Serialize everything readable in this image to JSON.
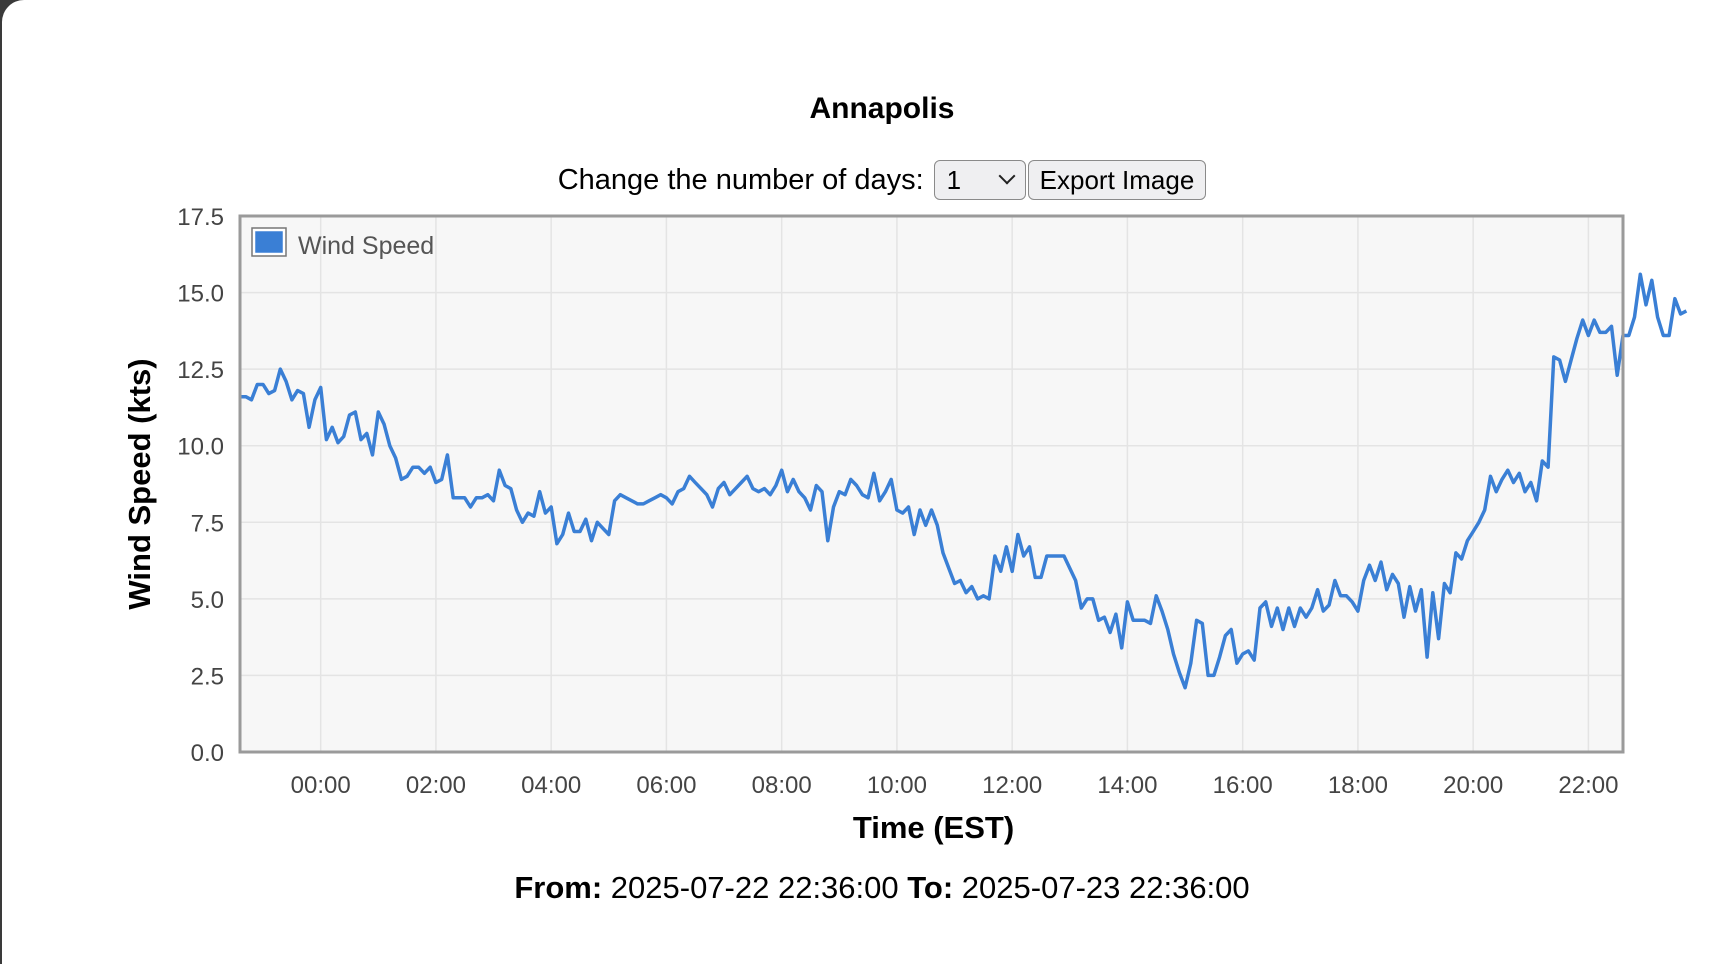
{
  "page": {
    "title": "Annapolis",
    "days_label": "Change the number of days:",
    "days_value": "1",
    "export_label": "Export Image",
    "from_label": "From:",
    "from_value": "2025-07-22 22:36:00",
    "to_label": "To:",
    "to_value": "2025-07-23 22:36:00"
  },
  "chart_data": {
    "type": "line",
    "title": "Annapolis",
    "xlabel": "Time (EST)",
    "ylabel": "Wind Speed (kts)",
    "ylim": [
      0,
      17.5
    ],
    "yticks": [
      "0.0",
      "2.5",
      "5.0",
      "7.5",
      "10.0",
      "12.5",
      "15.0",
      "17.5"
    ],
    "xlim": [
      "2025-07-22 22:36:00",
      "2025-07-23 22:36:00"
    ],
    "xticks": [
      "00:00",
      "02:00",
      "04:00",
      "06:00",
      "08:00",
      "10:00",
      "12:00",
      "14:00",
      "16:00",
      "18:00",
      "20:00",
      "22:00"
    ],
    "grid": true,
    "legend": {
      "position": "top-left",
      "entries": [
        "Wind Speed"
      ]
    },
    "series": [
      {
        "name": "Wind Speed",
        "color": "#3a7fd5",
        "x_interval_minutes": 6,
        "x_start": "2025-07-22 22:36:00",
        "values": [
          11.6,
          11.6,
          11.5,
          12.0,
          12.0,
          11.7,
          11.8,
          12.5,
          12.1,
          11.5,
          11.8,
          11.7,
          10.6,
          11.5,
          11.9,
          10.2,
          10.6,
          10.1,
          10.3,
          11.0,
          11.1,
          10.2,
          10.4,
          9.7,
          11.1,
          10.7,
          10.0,
          9.6,
          8.9,
          9.0,
          9.3,
          9.3,
          9.1,
          9.3,
          8.8,
          8.9,
          9.7,
          8.3,
          8.3,
          8.3,
          8.0,
          8.3,
          8.3,
          8.4,
          8.2,
          9.2,
          8.7,
          8.6,
          7.9,
          7.5,
          7.8,
          7.7,
          8.5,
          7.8,
          8.0,
          6.8,
          7.1,
          7.8,
          7.2,
          7.2,
          7.6,
          6.9,
          7.5,
          7.3,
          7.1,
          8.2,
          8.4,
          8.3,
          8.2,
          8.1,
          8.1,
          8.2,
          8.3,
          8.4,
          8.3,
          8.1,
          8.5,
          8.6,
          9.0,
          8.8,
          8.6,
          8.4,
          8.0,
          8.6,
          8.8,
          8.4,
          8.6,
          8.8,
          9.0,
          8.6,
          8.5,
          8.6,
          8.4,
          8.7,
          9.2,
          8.5,
          8.9,
          8.5,
          8.3,
          7.9,
          8.7,
          8.5,
          6.9,
          8.0,
          8.5,
          8.4,
          8.9,
          8.7,
          8.4,
          8.3,
          9.1,
          8.2,
          8.5,
          8.9,
          7.9,
          7.8,
          8.0,
          7.1,
          7.9,
          7.4,
          7.9,
          7.4,
          6.5,
          6.0,
          5.5,
          5.6,
          5.2,
          5.4,
          5.0,
          5.1,
          5.0,
          6.4,
          5.9,
          6.7,
          5.9,
          7.1,
          6.4,
          6.7,
          5.7,
          5.7,
          6.4,
          6.4,
          6.4,
          6.4,
          6.0,
          5.6,
          4.7,
          5.0,
          5.0,
          4.3,
          4.4,
          3.9,
          4.5,
          3.4,
          4.9,
          4.3,
          4.3,
          4.3,
          4.2,
          5.1,
          4.6,
          4.0,
          3.2,
          2.6,
          2.1,
          2.9,
          4.3,
          4.2,
          2.5,
          2.5,
          3.1,
          3.8,
          4.0,
          2.9,
          3.2,
          3.3,
          3.0,
          4.7,
          4.9,
          4.1,
          4.7,
          4.0,
          4.7,
          4.1,
          4.7,
          4.4,
          4.7,
          5.3,
          4.6,
          4.8,
          5.6,
          5.1,
          5.1,
          4.9,
          4.6,
          5.6,
          6.1,
          5.6,
          6.2,
          5.3,
          5.8,
          5.5,
          4.4,
          5.4,
          4.6,
          5.3,
          3.1,
          5.2,
          3.7,
          5.5,
          5.2,
          6.5,
          6.3,
          6.9,
          7.2,
          7.5,
          7.9,
          9.0,
          8.5,
          8.9,
          9.2,
          8.8,
          9.1,
          8.5,
          8.8,
          8.2,
          9.5,
          9.3,
          12.9,
          12.8,
          12.1,
          12.8,
          13.5,
          14.1,
          13.6,
          14.1,
          13.7,
          13.7,
          13.9,
          12.3,
          13.6,
          13.6,
          14.2,
          15.6,
          14.6,
          15.4,
          14.2,
          13.6,
          13.6,
          14.8,
          14.3,
          14.4
        ]
      }
    ]
  }
}
